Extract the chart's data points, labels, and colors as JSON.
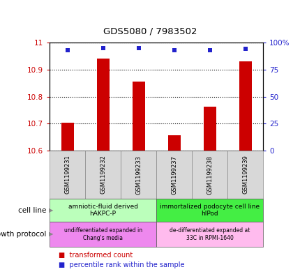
{
  "title": "GDS5080 / 7983502",
  "samples": [
    "GSM1199231",
    "GSM1199232",
    "GSM1199233",
    "GSM1199237",
    "GSM1199238",
    "GSM1199239"
  ],
  "bar_values": [
    10.703,
    10.94,
    10.855,
    10.658,
    10.763,
    10.93
  ],
  "percentile_values": [
    93,
    95,
    95,
    93,
    93,
    94
  ],
  "ylim_left": [
    10.6,
    11.0
  ],
  "ylim_right": [
    0,
    100
  ],
  "yticks_left": [
    10.6,
    10.7,
    10.8,
    10.9,
    11.0
  ],
  "ytick_labels_left": [
    "10.6",
    "10.7",
    "10.8",
    "10.9",
    "11"
  ],
  "yticks_right": [
    0,
    25,
    50,
    75,
    100
  ],
  "ytick_labels_right": [
    "0",
    "25",
    "50",
    "75",
    "100%"
  ],
  "bar_color": "#cc0000",
  "dot_color": "#2222cc",
  "bar_width": 0.35,
  "cell_line_groups": [
    {
      "label": "amniotic-fluid derived\nhAKPC-P",
      "start": 0,
      "end": 3,
      "color": "#bbffbb"
    },
    {
      "label": "immortalized podocyte cell line\nhIPod",
      "start": 3,
      "end": 6,
      "color": "#44ee44"
    }
  ],
  "growth_protocol_groups": [
    {
      "label": "undifferentiated expanded in\nChang's media",
      "start": 0,
      "end": 3,
      "color": "#ee88ee"
    },
    {
      "label": "de-differentiated expanded at\n33C in RPMI-1640",
      "start": 3,
      "end": 6,
      "color": "#ffbbee"
    }
  ],
  "cell_line_label": "cell line",
  "growth_protocol_label": "growth protocol",
  "legend_bar_label": "transformed count",
  "legend_dot_label": "percentile rank within the sample",
  "tick_color_left": "#cc0000",
  "tick_color_right": "#2222cc"
}
